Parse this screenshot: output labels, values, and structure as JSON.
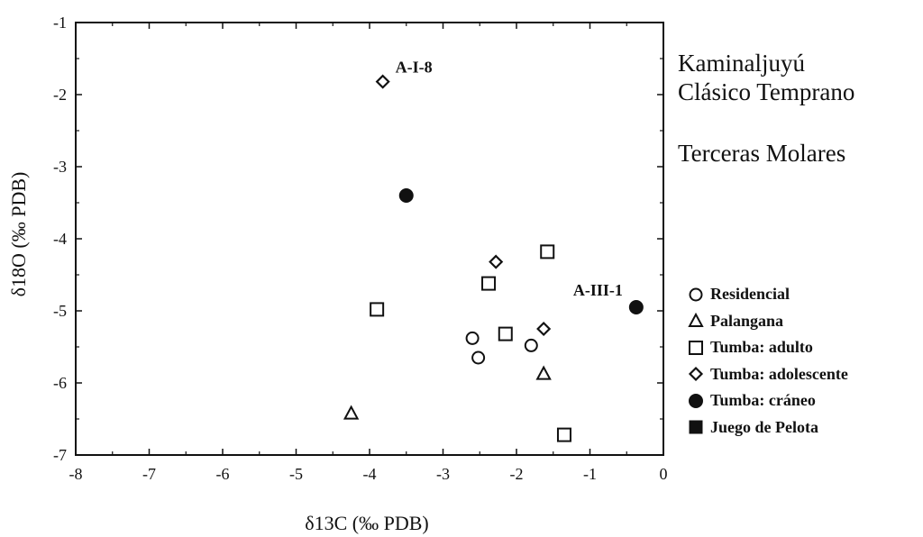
{
  "chart_data": {
    "type": "scatter",
    "xlabel": "δ13C  (‰ PDB)",
    "ylabel": "δ18O  (‰ PDB)",
    "xlim": [
      -8,
      0
    ],
    "ylim": [
      -7,
      -1
    ],
    "xticks": [
      -8,
      -7,
      -6,
      -5,
      -4,
      -3,
      -2,
      -1,
      0
    ],
    "yticks": [
      -1,
      -2,
      -3,
      -4,
      -5,
      -6,
      -7
    ],
    "grid": false,
    "legend_position": "right",
    "series": [
      {
        "name": "Residencial",
        "marker": "circle-open",
        "points": [
          {
            "x": -2.6,
            "y": -5.38
          },
          {
            "x": -2.52,
            "y": -5.65
          },
          {
            "x": -1.8,
            "y": -5.48
          }
        ]
      },
      {
        "name": "Palangana",
        "marker": "triangle-open",
        "points": [
          {
            "x": -4.25,
            "y": -6.42
          },
          {
            "x": -1.63,
            "y": -5.87
          }
        ]
      },
      {
        "name": "Tumba: adulto",
        "marker": "square-open",
        "points": [
          {
            "x": -1.58,
            "y": -4.18
          },
          {
            "x": -2.38,
            "y": -4.62
          },
          {
            "x": -2.15,
            "y": -5.32
          },
          {
            "x": -3.9,
            "y": -4.98
          },
          {
            "x": -1.35,
            "y": -6.72
          }
        ]
      },
      {
        "name": "Tumba: adolescente",
        "marker": "diamond-open",
        "points": [
          {
            "x": -3.82,
            "y": -1.82
          },
          {
            "x": -2.28,
            "y": -4.32
          },
          {
            "x": -1.63,
            "y": -5.25
          }
        ]
      },
      {
        "name": "Tumba: cráneo",
        "marker": "circle-filled",
        "points": [
          {
            "x": -3.5,
            "y": -3.4
          },
          {
            "x": -0.37,
            "y": -4.95
          }
        ]
      },
      {
        "name": "Juego de Pelota",
        "marker": "square-filled",
        "points": []
      }
    ],
    "annotations": [
      {
        "text": "A-I-8",
        "x": -3.82,
        "y": -1.82
      },
      {
        "text": "A-III-1",
        "x": -0.37,
        "y": -4.95
      }
    ]
  },
  "titles": {
    "line1": "Kaminaljuyú",
    "line2": "Clásico Temprano",
    "line3": "Terceras  Molares"
  }
}
